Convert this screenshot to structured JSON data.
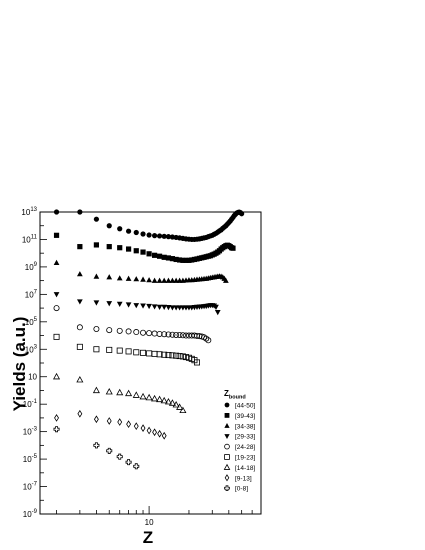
{
  "chart_data": {
    "type": "scatter",
    "xlabel": "Z",
    "ylabel": "Yields (a.u.)",
    "xscale": "log",
    "yscale": "log",
    "xlim": [
      1.5,
      70
    ],
    "ylim": [
      1e-09,
      10000000000000.0
    ],
    "x_tick_label": "10",
    "y_tick_labels": [
      "10^{-9}",
      "10^{-7}",
      "10^{-5}",
      "10^{-3}",
      "10^{-1}",
      "10",
      "10^{3}",
      "10^{5}",
      "10^{7}",
      "10^{9}",
      "10^{11}",
      "10^{13}"
    ],
    "legend_title_main": "Z",
    "legend_title_sub": "bound",
    "legend_position": "bottom-right",
    "series": [
      {
        "name": "[44-50]",
        "marker": "filled-circle",
        "x": [
          2,
          3,
          4,
          5,
          6,
          7,
          8,
          9,
          10,
          11,
          12,
          13,
          14,
          15,
          16,
          17,
          18,
          19,
          20,
          21,
          22,
          23,
          24,
          25,
          26,
          27,
          28,
          29,
          30,
          31,
          32,
          33,
          34,
          35,
          36,
          37,
          38,
          39,
          40,
          41,
          42,
          43,
          44,
          45,
          46,
          47,
          48,
          49,
          50
        ],
        "y": [
          10000000000000.0,
          10000000000000.0,
          3000000000000.0,
          1000000000000.0,
          600000000000.0,
          400000000000.0,
          320000000000.0,
          250000000000.0,
          210000000000.0,
          190000000000.0,
          180000000000.0,
          170000000000.0,
          160000000000.0,
          150000000000.0,
          140000000000.0,
          130000000000.0,
          120000000000.0,
          110000000000.0,
          105000000000.0,
          100000000000.0,
          100000000000.0,
          105000000000.0,
          110000000000.0,
          120000000000.0,
          130000000000.0,
          140000000000.0,
          160000000000.0,
          180000000000.0,
          200000000000.0,
          240000000000.0,
          280000000000.0,
          340000000000.0,
          420000000000.0,
          500000000000.0,
          650000000000.0,
          800000000000.0,
          1000000000000.0,
          1300000000000.0,
          1700000000000.0,
          2200000000000.0,
          3000000000000.0,
          4000000000000.0,
          5500000000000.0,
          7000000000000.0,
          8500000000000.0,
          9500000000000.0,
          9800000000000.0,
          9000000000000.0,
          7500000000000.0
        ]
      },
      {
        "name": "[39-43]",
        "marker": "filled-square",
        "x": [
          2,
          3,
          4,
          5,
          6,
          7,
          8,
          9,
          10,
          11,
          12,
          13,
          14,
          15,
          16,
          17,
          18,
          19,
          20,
          21,
          22,
          23,
          24,
          25,
          26,
          27,
          28,
          29,
          30,
          31,
          32,
          33,
          34,
          35,
          36,
          37,
          38,
          39,
          40,
          41,
          42,
          43
        ],
        "y": [
          200000000000.0,
          30000000000.0,
          40000000000.0,
          30000000000.0,
          25000000000.0,
          20000000000.0,
          15000000000.0,
          12000000000.0,
          9000000000.0,
          7000000000.0,
          6000000000.0,
          5000000000.0,
          4500000000.0,
          4000000000.0,
          3500000000.0,
          3200000000.0,
          3000000000.0,
          3000000000.0,
          3000000000.0,
          3200000000.0,
          3500000000.0,
          3800000000.0,
          4200000000.0,
          4600000000.0,
          5000000000.0,
          5500000000.0,
          6000000000.0,
          6500000000.0,
          7500000000.0,
          8500000000.0,
          10000000000.0,
          12000000000.0,
          15000000000.0,
          20000000000.0,
          25000000000.0,
          30000000000.0,
          35000000000.0,
          38000000000.0,
          35000000000.0,
          30000000000.0,
          25000000000.0,
          23000000000.0
        ]
      },
      {
        "name": "[34-38]",
        "marker": "filled-triangle-up",
        "x": [
          2,
          3,
          4,
          5,
          6,
          7,
          8,
          9,
          10,
          11,
          12,
          13,
          14,
          15,
          16,
          17,
          18,
          19,
          20,
          21,
          22,
          23,
          24,
          25,
          26,
          27,
          28,
          29,
          30,
          31,
          32,
          33,
          34,
          35,
          36,
          37,
          38
        ],
        "y": [
          2000000000.0,
          300000000.0,
          200000000.0,
          180000000.0,
          150000000.0,
          140000000.0,
          130000000.0,
          120000000.0,
          110000000.0,
          100000000.0,
          100000000.0,
          100000000.0,
          100000000.0,
          100000000.0,
          100000000.0,
          100000000.0,
          100000000.0,
          105000000.0,
          110000000.0,
          110000000.0,
          115000000.0,
          120000000.0,
          125000000.0,
          130000000.0,
          135000000.0,
          140000000.0,
          150000000.0,
          160000000.0,
          170000000.0,
          180000000.0,
          190000000.0,
          200000000.0,
          210000000.0,
          200000000.0,
          180000000.0,
          140000000.0,
          100000000.0
        ]
      },
      {
        "name": "[29-33]",
        "marker": "filled-triangle-down",
        "x": [
          2,
          3,
          4,
          5,
          6,
          7,
          8,
          9,
          10,
          11,
          12,
          13,
          14,
          15,
          16,
          17,
          18,
          19,
          20,
          21,
          22,
          23,
          24,
          25,
          26,
          27,
          28,
          29,
          30,
          31,
          32,
          33
        ],
        "y": [
          10000000.0,
          3000000.0,
          2500000.0,
          2200000.0,
          2000000.0,
          1800000.0,
          1600000.0,
          1500000.0,
          1400000.0,
          1300000.0,
          1200000.0,
          1200000.0,
          1150000.0,
          1100000.0,
          1100000.0,
          1100000.0,
          1100000.0,
          1100000.0,
          1100000.0,
          1100000.0,
          1150000.0,
          1200000.0,
          1250000.0,
          1300000.0,
          1350000.0,
          1400000.0,
          1500000.0,
          1600000.0,
          1600000.0,
          1500000.0,
          1200000.0,
          500000.0
        ]
      },
      {
        "name": "[24-28]",
        "marker": "open-circle",
        "x": [
          2,
          3,
          4,
          5,
          6,
          7,
          8,
          9,
          10,
          11,
          12,
          13,
          14,
          15,
          16,
          17,
          18,
          19,
          20,
          21,
          22,
          23,
          24,
          25,
          26,
          27,
          28
        ],
        "y": [
          1000000.0,
          40000.0,
          30000.0,
          25000.0,
          22000.0,
          20000.0,
          18000.0,
          16000.0,
          15000.0,
          14000.0,
          13000.0,
          12500.0,
          12000.0,
          11500.0,
          11000.0,
          11000.0,
          10500.0,
          10000.0,
          10000.0,
          10000.0,
          10000.0,
          9500.0,
          9000.0,
          8500.0,
          7500.0,
          6000.0,
          4500.0
        ]
      },
      {
        "name": "[19-23]",
        "marker": "open-square",
        "x": [
          2,
          3,
          4,
          5,
          6,
          7,
          8,
          9,
          10,
          11,
          12,
          13,
          14,
          15,
          16,
          17,
          18,
          19,
          20,
          21,
          22,
          23
        ],
        "y": [
          8000.0,
          1500.0,
          1000.0,
          900.0,
          800.0,
          700.0,
          600.0,
          550.0,
          500.0,
          460.0,
          430.0,
          400.0,
          380.0,
          360.0,
          340.0,
          320.0,
          300.0,
          270.0,
          240.0,
          200.0,
          160.0,
          110.0
        ]
      },
      {
        "name": "[14-18]",
        "marker": "open-triangle-up",
        "x": [
          2,
          3,
          4,
          5,
          6,
          7,
          8,
          9,
          10,
          11,
          12,
          13,
          14,
          15,
          16,
          17,
          18
        ],
        "y": [
          10.0,
          6,
          1,
          0.8,
          0.7,
          0.6,
          0.45,
          0.35,
          0.3,
          0.25,
          0.22,
          0.18,
          0.15,
          0.12,
          0.09,
          0.06,
          0.035
        ]
      },
      {
        "name": "[9-13]",
        "marker": "open-diamond",
        "x": [
          2,
          3,
          4,
          5,
          6,
          7,
          8,
          9,
          10,
          11,
          12,
          13
        ],
        "y": [
          0.01,
          0.02,
          0.008,
          0.006,
          0.005,
          0.0035,
          0.0025,
          0.0018,
          0.0012,
          0.0009,
          0.0007,
          0.0005
        ]
      },
      {
        "name": "[0-8]",
        "marker": "open-cross",
        "x": [
          2,
          4,
          5,
          6,
          7,
          8
        ],
        "y": [
          0.0015,
          0.0001,
          4e-05,
          1.5e-05,
          6e-06,
          3e-06
        ]
      }
    ]
  }
}
